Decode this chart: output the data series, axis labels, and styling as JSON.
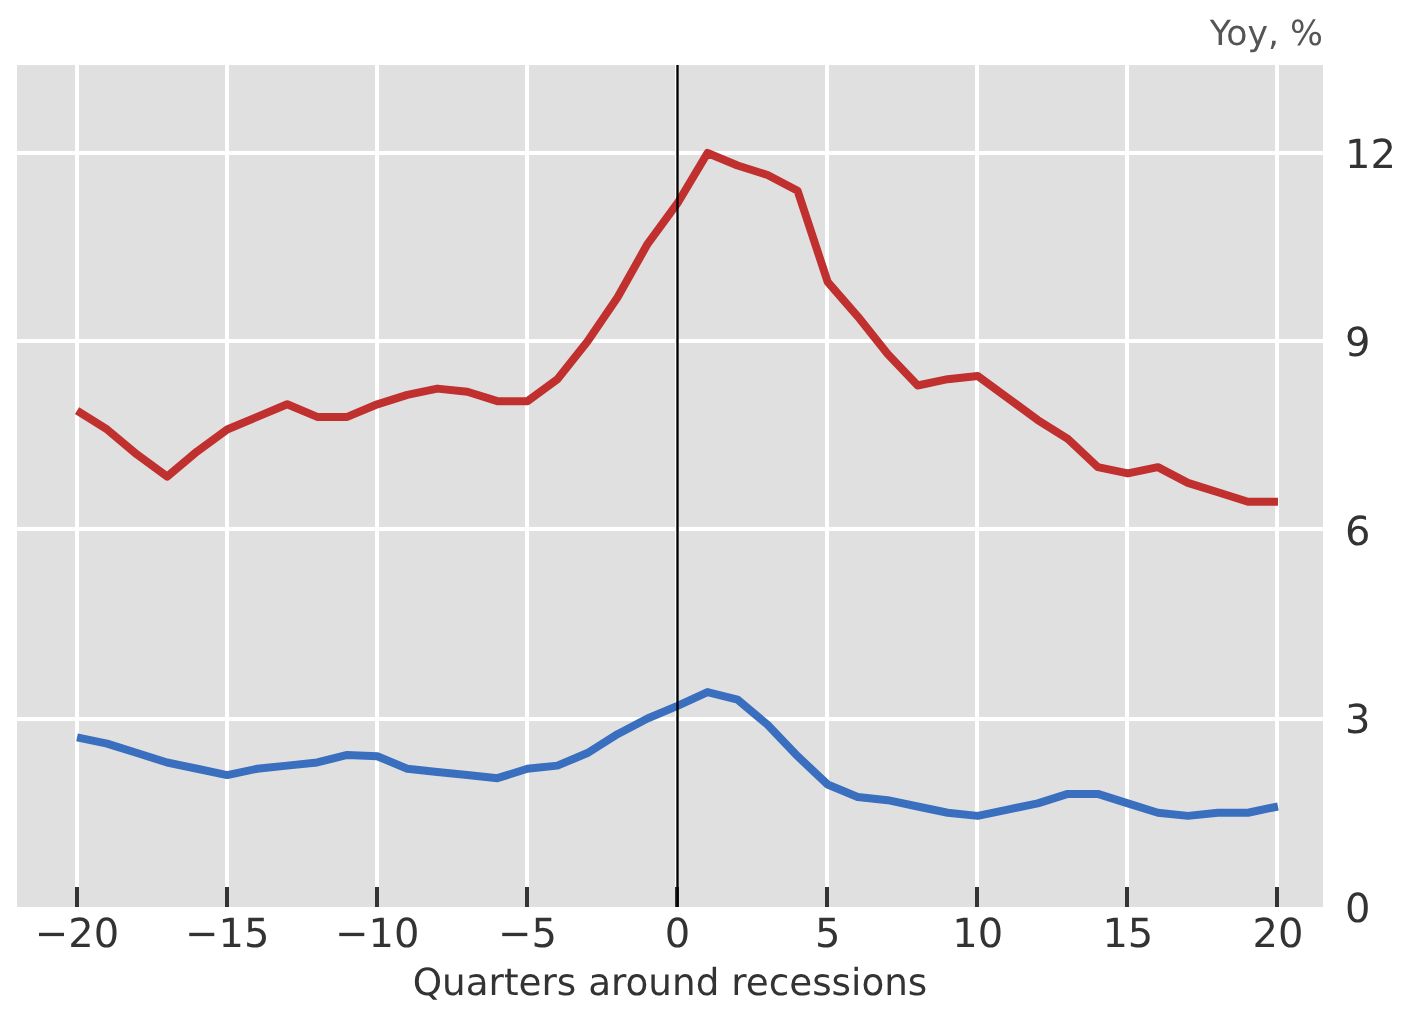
{
  "chart_data": {
    "type": "line",
    "ylabel": "Yoy, %",
    "xlabel": "Quarters around recessions",
    "xlim": [
      -22,
      21.5
    ],
    "xticks": [
      {
        "value": -20,
        "label": "−20"
      },
      {
        "value": -15,
        "label": "−15"
      },
      {
        "value": -10,
        "label": "−10"
      },
      {
        "value": -5,
        "label": "−5"
      },
      0,
      5,
      10,
      15,
      20
    ],
    "ylim": [
      0,
      13.4
    ],
    "yticks": [
      0,
      3,
      6,
      9,
      12
    ],
    "grid": true,
    "x": [
      -20,
      -19,
      -18,
      -17,
      -16,
      -15,
      -14,
      -13,
      -12,
      -11,
      -10,
      -9,
      -8,
      -7,
      -6,
      -5,
      -4,
      -3,
      -2,
      -1,
      0,
      1,
      2,
      3,
      4,
      5,
      6,
      7,
      8,
      9,
      10,
      11,
      12,
      13,
      14,
      15,
      16,
      17,
      18,
      19,
      20
    ],
    "series": [
      {
        "color": "#c0302f",
        "values": [
          7.9,
          7.6,
          7.2,
          6.85,
          7.25,
          7.6,
          7.8,
          8.0,
          7.8,
          7.8,
          8.0,
          8.15,
          8.25,
          8.2,
          8.05,
          8.05,
          8.4,
          9.0,
          9.7,
          10.55,
          11.2,
          12.0,
          11.8,
          11.65,
          11.4,
          9.95,
          9.4,
          8.8,
          8.3,
          8.4,
          8.45,
          8.1,
          7.75,
          7.45,
          7.0,
          6.9,
          7.0,
          6.75,
          6.6,
          6.45,
          6.45
        ]
      },
      {
        "color": "#3a6fbf",
        "values": [
          2.7,
          2.6,
          2.45,
          2.3,
          2.2,
          2.1,
          2.2,
          2.25,
          2.3,
          2.42,
          2.4,
          2.2,
          2.15,
          2.1,
          2.05,
          2.2,
          2.25,
          2.45,
          2.75,
          3.0,
          3.2,
          3.42,
          3.3,
          2.9,
          2.4,
          1.95,
          1.75,
          1.7,
          1.6,
          1.5,
          1.45,
          1.55,
          1.65,
          1.8,
          1.8,
          1.65,
          1.5,
          1.45,
          1.5,
          1.5,
          1.6
        ]
      }
    ],
    "ref_lines": [
      {
        "axis": "x",
        "value": 0,
        "color": "#000000"
      }
    ]
  }
}
